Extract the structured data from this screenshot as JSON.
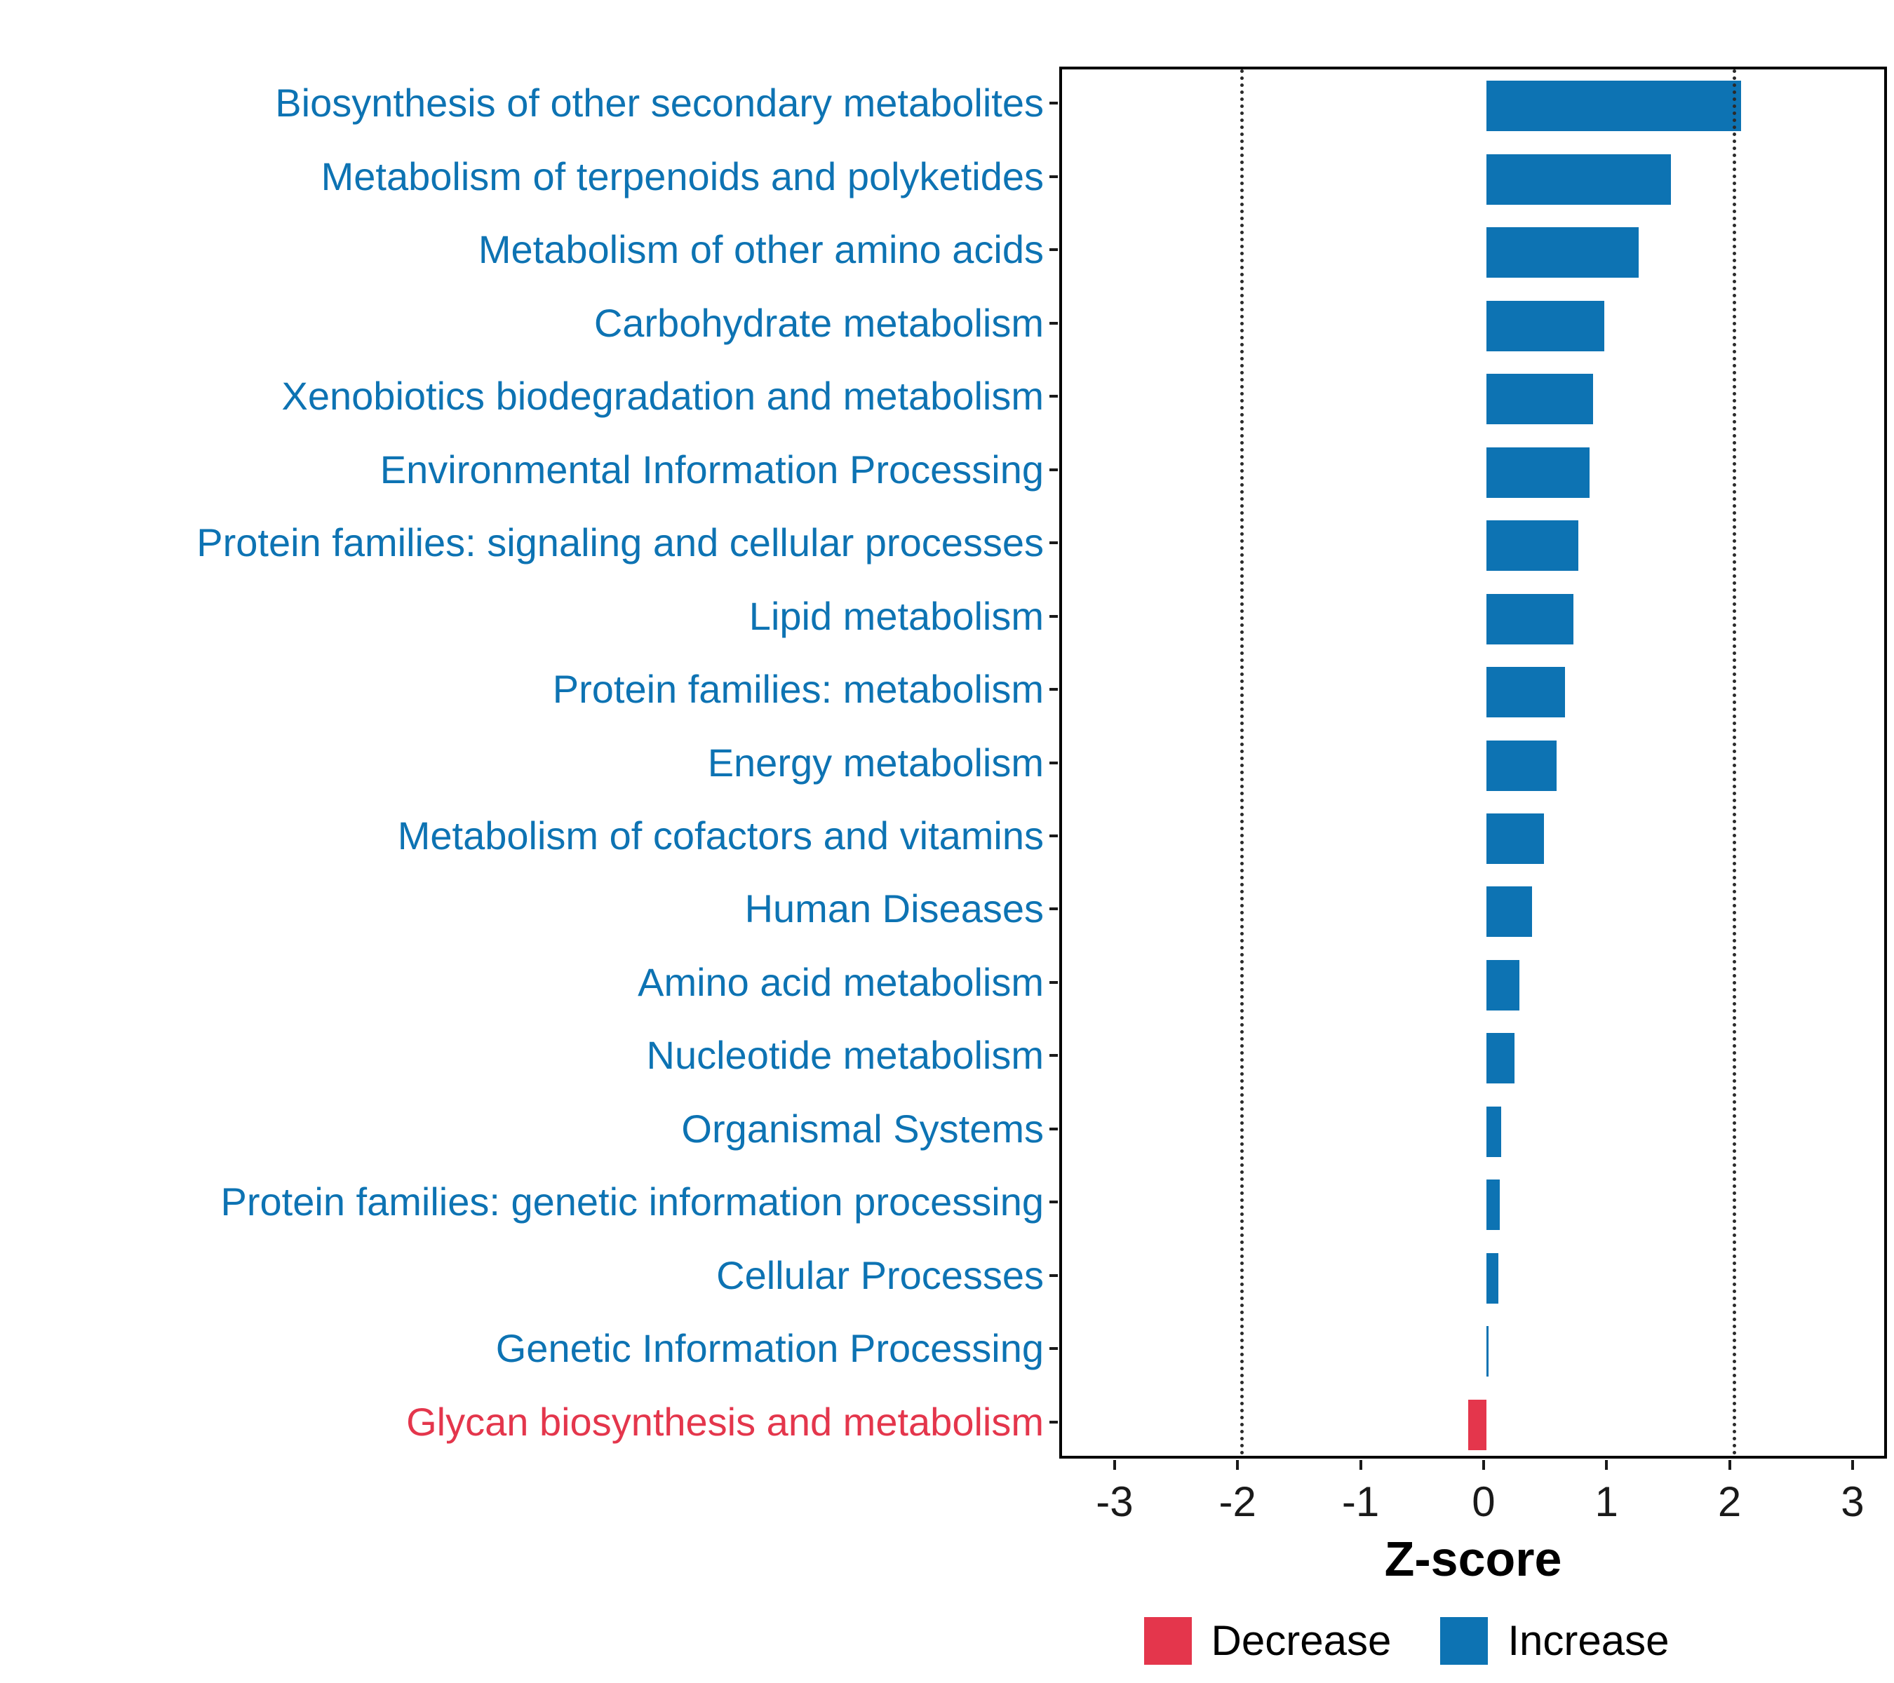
{
  "chart_data": {
    "type": "bar",
    "orientation": "horizontal",
    "title": "",
    "xlabel": "Z-score",
    "x_ticks": [
      -3,
      -2,
      -1,
      0,
      1,
      2,
      3
    ],
    "x_domain": [
      -3.45,
      3.28
    ],
    "reference_vlines": [
      -2,
      2
    ],
    "grid": false,
    "legend_position": "bottom",
    "categories": [
      "Biosynthesis of other secondary metabolites",
      "Metabolism of terpenoids and polyketides",
      "Metabolism of other amino acids",
      "Carbohydrate metabolism",
      "Xenobiotics biodegradation and metabolism",
      "Environmental Information Processing",
      "Protein families: signaling and cellular processes",
      "Lipid metabolism",
      "Protein families: metabolism",
      "Energy metabolism",
      "Metabolism of cofactors and vitamins",
      "Human Diseases",
      "Amino acid metabolism",
      "Nucleotide metabolism",
      "Organismal Systems",
      "Protein families: genetic information processing",
      "Cellular Processes",
      "Genetic Information Processing",
      "Glycan biosynthesis and metabolism"
    ],
    "values": [
      2.07,
      1.5,
      1.24,
      0.96,
      0.87,
      0.84,
      0.75,
      0.71,
      0.64,
      0.57,
      0.47,
      0.37,
      0.27,
      0.23,
      0.12,
      0.11,
      0.1,
      0.01,
      -0.15
    ],
    "directions": [
      "increase",
      "increase",
      "increase",
      "increase",
      "increase",
      "increase",
      "increase",
      "increase",
      "increase",
      "increase",
      "increase",
      "increase",
      "increase",
      "increase",
      "increase",
      "increase",
      "increase",
      "increase",
      "decrease"
    ],
    "colors": {
      "increase": "#0D73B3",
      "decrease": "#E4364C",
      "axis_text": "#1a1a1a",
      "panel_border": "#000000",
      "vline": "#2b2b2b"
    },
    "legend": [
      {
        "label": "Decrease",
        "key": "decrease"
      },
      {
        "label": "Increase",
        "key": "increase"
      }
    ]
  }
}
